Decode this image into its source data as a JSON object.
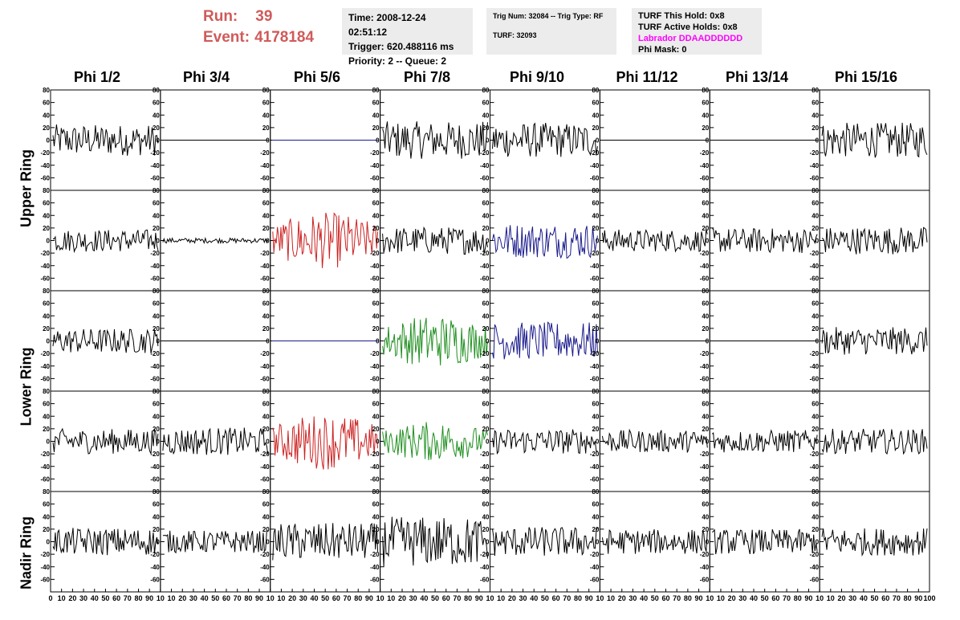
{
  "run_label": "Run:",
  "run_value": "39",
  "event_label": "Event:",
  "event_value": "4178184",
  "time_panel": {
    "time": "Time: 2008-12-24 02:51:12",
    "trigger": "Trigger: 620.488116 ms",
    "priority": "Priority: 2 -- Queue: 2"
  },
  "trig_panel": {
    "trig": "Trig Num: 32084 -- Trig Type: RF",
    "turf": "TURF: 32093"
  },
  "turf_panel": {
    "hold": "TURF This Hold: 0x8",
    "active": "TURF Active Holds: 0x8",
    "labrador": "Labrador DDAADDDDDD",
    "phimask": "Phi Mask: 0"
  },
  "phi_labels": [
    "Phi 1/2",
    "Phi 3/4",
    "Phi 5/6",
    "Phi 7/8",
    "Phi 9/10",
    "Phi 11/12",
    "Phi 13/14",
    "Phi 15/16"
  ],
  "ring_labels": {
    "upper": "Upper Ring",
    "lower": "Lower Ring",
    "nadir": "Nadir Ring"
  },
  "colors": {
    "black": "#000000",
    "red": "#cc2222",
    "blue": "#1a1a8c",
    "green": "#1f8f1f",
    "title_red": "#d05a5a",
    "magenta": "#ff00ff"
  },
  "chart_data": {
    "type": "line",
    "xlim": [
      0,
      100
    ],
    "ylim": [
      -80,
      80
    ],
    "yticks": [
      -60,
      -40,
      -20,
      0,
      20,
      40,
      60,
      80
    ],
    "yticklabels": [
      "-60",
      "-40",
      "-20",
      "0",
      "20",
      "40",
      "60",
      "80"
    ],
    "xticklabels": [
      "0",
      "10",
      "20",
      "30",
      "40",
      "50",
      "60",
      "70",
      "80",
      "90",
      "10",
      "10",
      "20",
      "30",
      "40",
      "50",
      "60",
      "70",
      "80",
      "90",
      "10",
      "10",
      "20",
      "30",
      "40",
      "50",
      "60",
      "70",
      "80",
      "90",
      "10",
      "10",
      "20",
      "30",
      "40",
      "50",
      "60",
      "70",
      "80",
      "90",
      "10",
      "10",
      "20",
      "30",
      "40",
      "50",
      "60",
      "70",
      "80",
      "90",
      "10",
      "10",
      "20",
      "30",
      "40",
      "50",
      "60",
      "70",
      "80",
      "90",
      "10",
      "10",
      "20",
      "30",
      "40",
      "50",
      "60",
      "70",
      "80",
      "90",
      "10",
      "10",
      "20",
      "30",
      "40",
      "50",
      "60",
      "70",
      "80",
      "90",
      "100"
    ],
    "grid": false,
    "waveform_samples": 90,
    "panels": [
      [
        {
          "c": "black",
          "a": 25
        },
        {
          "c": "flat",
          "a": 0
        },
        {
          "c": "flatblue",
          "a": 0
        },
        {
          "c": "black",
          "a": 30
        },
        {
          "c": "black",
          "a": 28
        },
        {
          "c": "flat",
          "a": 0
        },
        {
          "c": "flat",
          "a": 0
        },
        {
          "c": "black",
          "a": 28
        }
      ],
      [
        {
          "c": "black",
          "a": 18
        },
        {
          "c": "black",
          "a": 4
        },
        {
          "c": "red",
          "a": 45
        },
        {
          "c": "black",
          "a": 22
        },
        {
          "c": "blue",
          "a": 28
        },
        {
          "c": "black",
          "a": 18
        },
        {
          "c": "black",
          "a": 20
        },
        {
          "c": "black",
          "a": 22
        }
      ],
      [
        {
          "c": "black",
          "a": 20
        },
        {
          "c": "flat",
          "a": 0
        },
        {
          "c": "flatblue",
          "a": 0
        },
        {
          "c": "green",
          "a": 42
        },
        {
          "c": "blue",
          "a": 30
        },
        {
          "c": "flat",
          "a": 0
        },
        {
          "c": "flat",
          "a": 0
        },
        {
          "c": "black",
          "a": 22
        }
      ],
      [
        {
          "c": "black",
          "a": 20
        },
        {
          "c": "black",
          "a": 22
        },
        {
          "c": "red",
          "a": 45
        },
        {
          "c": "green",
          "a": 32
        },
        {
          "c": "black",
          "a": 20
        },
        {
          "c": "black",
          "a": 18
        },
        {
          "c": "black",
          "a": 18
        },
        {
          "c": "black",
          "a": 20
        }
      ],
      [
        {
          "c": "black",
          "a": 22
        },
        {
          "c": "black",
          "a": 18
        },
        {
          "c": "black",
          "a": 30
        },
        {
          "c": "black",
          "a": 40
        },
        {
          "c": "black",
          "a": 24
        },
        {
          "c": "black",
          "a": 20
        },
        {
          "c": "black",
          "a": 20
        },
        {
          "c": "black",
          "a": 22
        }
      ]
    ]
  }
}
